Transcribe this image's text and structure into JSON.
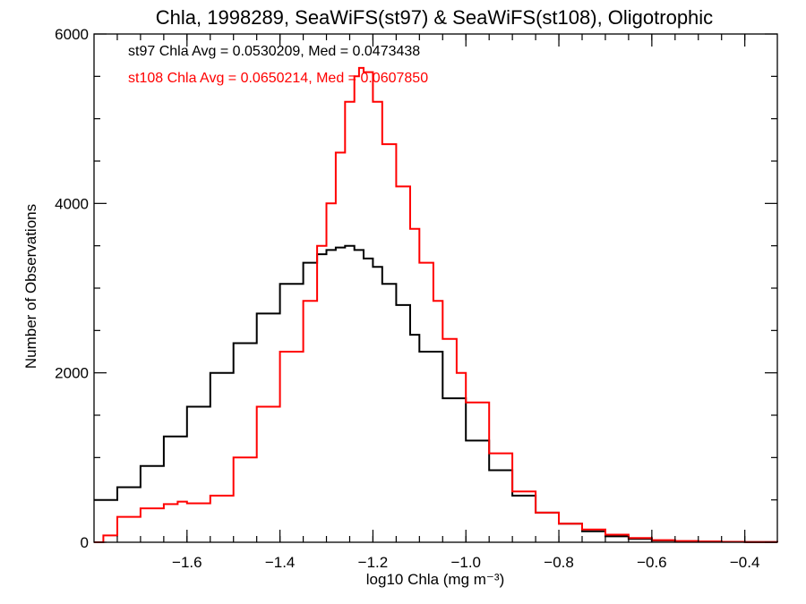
{
  "chart_data": {
    "type": "line",
    "title": "Chla, 1998289, SeaWiFS(st97) & SeaWiFS(st108), Oligotrophic",
    "xlabel": "log10 Chla (mg m⁻³)",
    "ylabel": "Number of Observations",
    "xlim": [
      -1.8,
      -0.33
    ],
    "ylim": [
      0,
      6000
    ],
    "x_ticks": [
      -1.6,
      -1.4,
      -1.2,
      -1.0,
      -0.8,
      -0.6,
      -0.4
    ],
    "x_tick_labels": [
      "−1.6",
      "−1.4",
      "−1.2",
      "−1.0",
      "−0.8",
      "−0.6",
      "−0.4"
    ],
    "y_ticks": [
      0,
      2000,
      4000,
      6000
    ],
    "y_tick_labels": [
      "0",
      "2000",
      "4000",
      "6000"
    ],
    "grid": false,
    "series": [
      {
        "name": "st97",
        "color": "#000000",
        "x": [
          -1.8,
          -1.75,
          -1.7,
          -1.65,
          -1.6,
          -1.55,
          -1.5,
          -1.45,
          -1.4,
          -1.35,
          -1.32,
          -1.3,
          -1.28,
          -1.26,
          -1.24,
          -1.22,
          -1.2,
          -1.18,
          -1.15,
          -1.12,
          -1.1,
          -1.05,
          -1.0,
          -0.95,
          -0.9,
          -0.85,
          -0.8,
          -0.75,
          -0.7,
          -0.65,
          -0.6,
          -0.55,
          -0.5,
          -0.45,
          -0.4,
          -0.33
        ],
        "values": [
          500,
          650,
          900,
          1250,
          1600,
          2000,
          2350,
          2700,
          3050,
          3300,
          3400,
          3450,
          3480,
          3500,
          3450,
          3350,
          3250,
          3050,
          2800,
          2450,
          2250,
          1700,
          1200,
          850,
          550,
          350,
          220,
          130,
          70,
          40,
          20,
          12,
          8,
          5,
          3,
          2
        ]
      },
      {
        "name": "st108",
        "color": "#ff0000",
        "x": [
          -1.8,
          -1.78,
          -1.75,
          -1.7,
          -1.65,
          -1.62,
          -1.6,
          -1.55,
          -1.5,
          -1.45,
          -1.4,
          -1.35,
          -1.32,
          -1.3,
          -1.28,
          -1.26,
          -1.24,
          -1.23,
          -1.22,
          -1.2,
          -1.18,
          -1.15,
          -1.12,
          -1.1,
          -1.07,
          -1.05,
          -1.02,
          -1.0,
          -0.95,
          -0.9,
          -0.85,
          -0.8,
          -0.75,
          -0.7,
          -0.65,
          -0.6,
          -0.55,
          -0.5,
          -0.45,
          -0.4,
          -0.33
        ],
        "values": [
          0,
          80,
          300,
          400,
          450,
          480,
          460,
          550,
          1000,
          1600,
          2250,
          2850,
          3500,
          4000,
          4600,
          5200,
          5500,
          5600,
          5550,
          5200,
          4700,
          4200,
          3700,
          3300,
          2850,
          2400,
          2000,
          1650,
          1050,
          600,
          350,
          220,
          150,
          90,
          50,
          25,
          15,
          10,
          5,
          3,
          2
        ]
      }
    ],
    "annotations": [
      {
        "text": "st97 Chla Avg = 0.0530209, Med = 0.0473438",
        "color": "#000000"
      },
      {
        "text": "st108 Chla Avg = 0.0650214, Med = 0.0607850",
        "color": "#ff0000"
      }
    ]
  }
}
